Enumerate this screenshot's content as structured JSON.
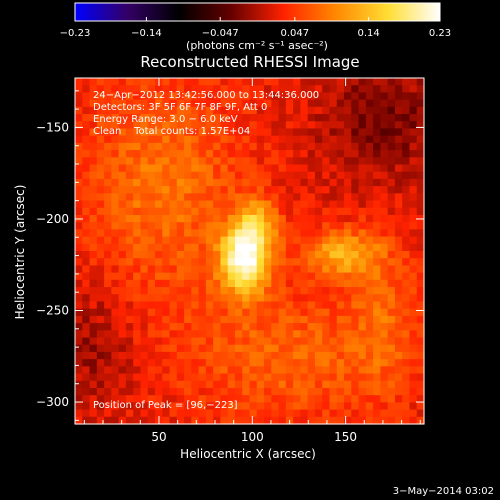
{
  "chart_data": {
    "type": "heatmap",
    "title": "Reconstructed RHESSI Image",
    "xlabel": "Heliocentric X (arcsec)",
    "ylabel": "Heliocentric Y (arcsec)",
    "xlim": [
      5,
      192
    ],
    "ylim": [
      -312,
      -123
    ],
    "x_ticks": [
      50,
      100,
      150
    ],
    "y_ticks": [
      -150,
      -200,
      -250,
      -300
    ],
    "colorbar": {
      "range": [
        -0.23,
        0.23
      ],
      "tick_values": [
        -0.23,
        -0.14,
        -0.047,
        0.047,
        0.14,
        0.23
      ],
      "tick_labels": [
        "−0.23",
        "−0.14",
        "−0.047",
        "0.047",
        "0.14",
        "0.23"
      ],
      "unit_label": "(photons cm⁻² s⁻¹ asec⁻²)"
    },
    "annotations": [
      "24−Apr−2012 13:42:56.000 to 13:44:36.000",
      "Detectors: 3F 5F 6F 7F 8F 9F, Att 0",
      "Energy Range: 3.0 − 6.0 keV",
      "Clean    Total counts: 1.57E+04"
    ],
    "peak_label": "Position of Peak = [96,−223]",
    "peak": {
      "x": 96,
      "y": -223,
      "value": 0.23
    },
    "sources": [
      {
        "x": 96,
        "y": -222,
        "value": 0.2,
        "sx": 9,
        "sy": 13
      },
      {
        "x": 148,
        "y": -219,
        "value": 0.1,
        "sx": 14,
        "sy": 9
      },
      {
        "x": 103,
        "y": -202,
        "value": 0.08,
        "sx": 8,
        "sy": 10
      },
      {
        "x": 52,
        "y": -182,
        "value": 0.06,
        "sx": 30,
        "sy": 40
      },
      {
        "x": 120,
        "y": -275,
        "value": 0.05,
        "sx": 40,
        "sy": 25
      },
      {
        "x": 170,
        "y": -250,
        "value": 0.04,
        "sx": 12,
        "sy": 30
      }
    ],
    "background": 0.025,
    "colormap": [
      "#0000ff",
      "#330066",
      "#000000",
      "#660000",
      "#ff2200",
      "#ff8800",
      "#ffdd33",
      "#ffffff"
    ]
  },
  "footer": {
    "date": "3−May−2014 03:02"
  }
}
